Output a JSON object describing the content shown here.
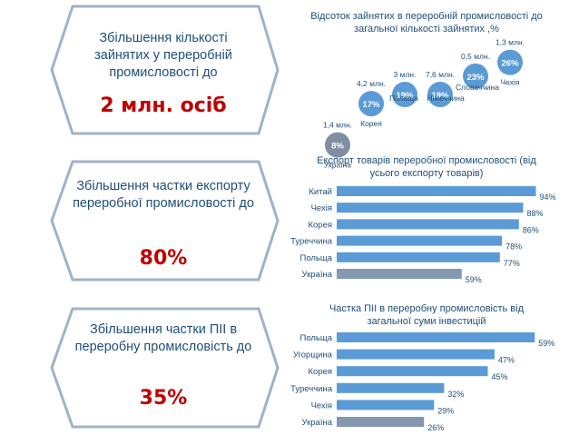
{
  "colors": {
    "hex_stroke": "#9fb3c8",
    "hex_text": "#1f4e79",
    "highlight": "#c00000",
    "bar": "#5b9bd5",
    "bar_ukraine": "#8497b0",
    "bubble": "#5b9bd5",
    "bubble_ukraine": "#7f8ea3",
    "chart_text": "#1f4e79"
  },
  "goals": [
    {
      "text": "Збільшення кількості зайнятих у переробній промисловості до",
      "value": "2 млн. осіб"
    },
    {
      "text": "Збільшення частки експорту переробної промисловості до",
      "value": "80%"
    },
    {
      "text": "Збільшення частки ПІІ в переробну промисловість до",
      "value": "35%"
    }
  ],
  "chart_data": [
    {
      "type": "scatter",
      "title": "Відсоток зайнятих в переробній промисловості до загальної кількості зайнятих ,%",
      "points": [
        {
          "country": "Україна",
          "value": 8,
          "label": "8%",
          "count": "1,4 млн."
        },
        {
          "country": "Корея",
          "value": 17,
          "label": "17%",
          "count": "4,2 млн."
        },
        {
          "country": "Польща",
          "value": 19,
          "label": "19%",
          "count": "3 млн."
        },
        {
          "country": "Німеччина",
          "value": 19,
          "label": "19%",
          "count": "7,6 млн."
        },
        {
          "country": "Словаччина",
          "value": 23,
          "label": "23%",
          "count": "0,5 млн."
        },
        {
          "country": "Чехія",
          "value": 26,
          "label": "26%",
          "count": "1,3 млн."
        }
      ]
    },
    {
      "type": "bar",
      "title": "Експорт товарів переробної промисловості (від усього експорту товарів)",
      "categories": [
        "Китай",
        "Чехія",
        "Корея",
        "Туреччина",
        "Польща",
        "Україна"
      ],
      "values": [
        94,
        88,
        86,
        78,
        77,
        59
      ],
      "labels": [
        "94%",
        "88%",
        "86%",
        "78%",
        "77%",
        "59%"
      ],
      "xlim": [
        0,
        100
      ]
    },
    {
      "type": "bar",
      "title": "Частка ПІІ в переробну промисловість від загальної суми інвестицій",
      "categories": [
        "Польща",
        "Угорщина",
        "Корея",
        "Туреччина",
        "Чехія",
        "Україна"
      ],
      "values": [
        59,
        47,
        45,
        32,
        29,
        26
      ],
      "labels": [
        "59%",
        "47%",
        "45%",
        "32%",
        "29%",
        "26%"
      ],
      "xlim": [
        0,
        60
      ]
    }
  ]
}
